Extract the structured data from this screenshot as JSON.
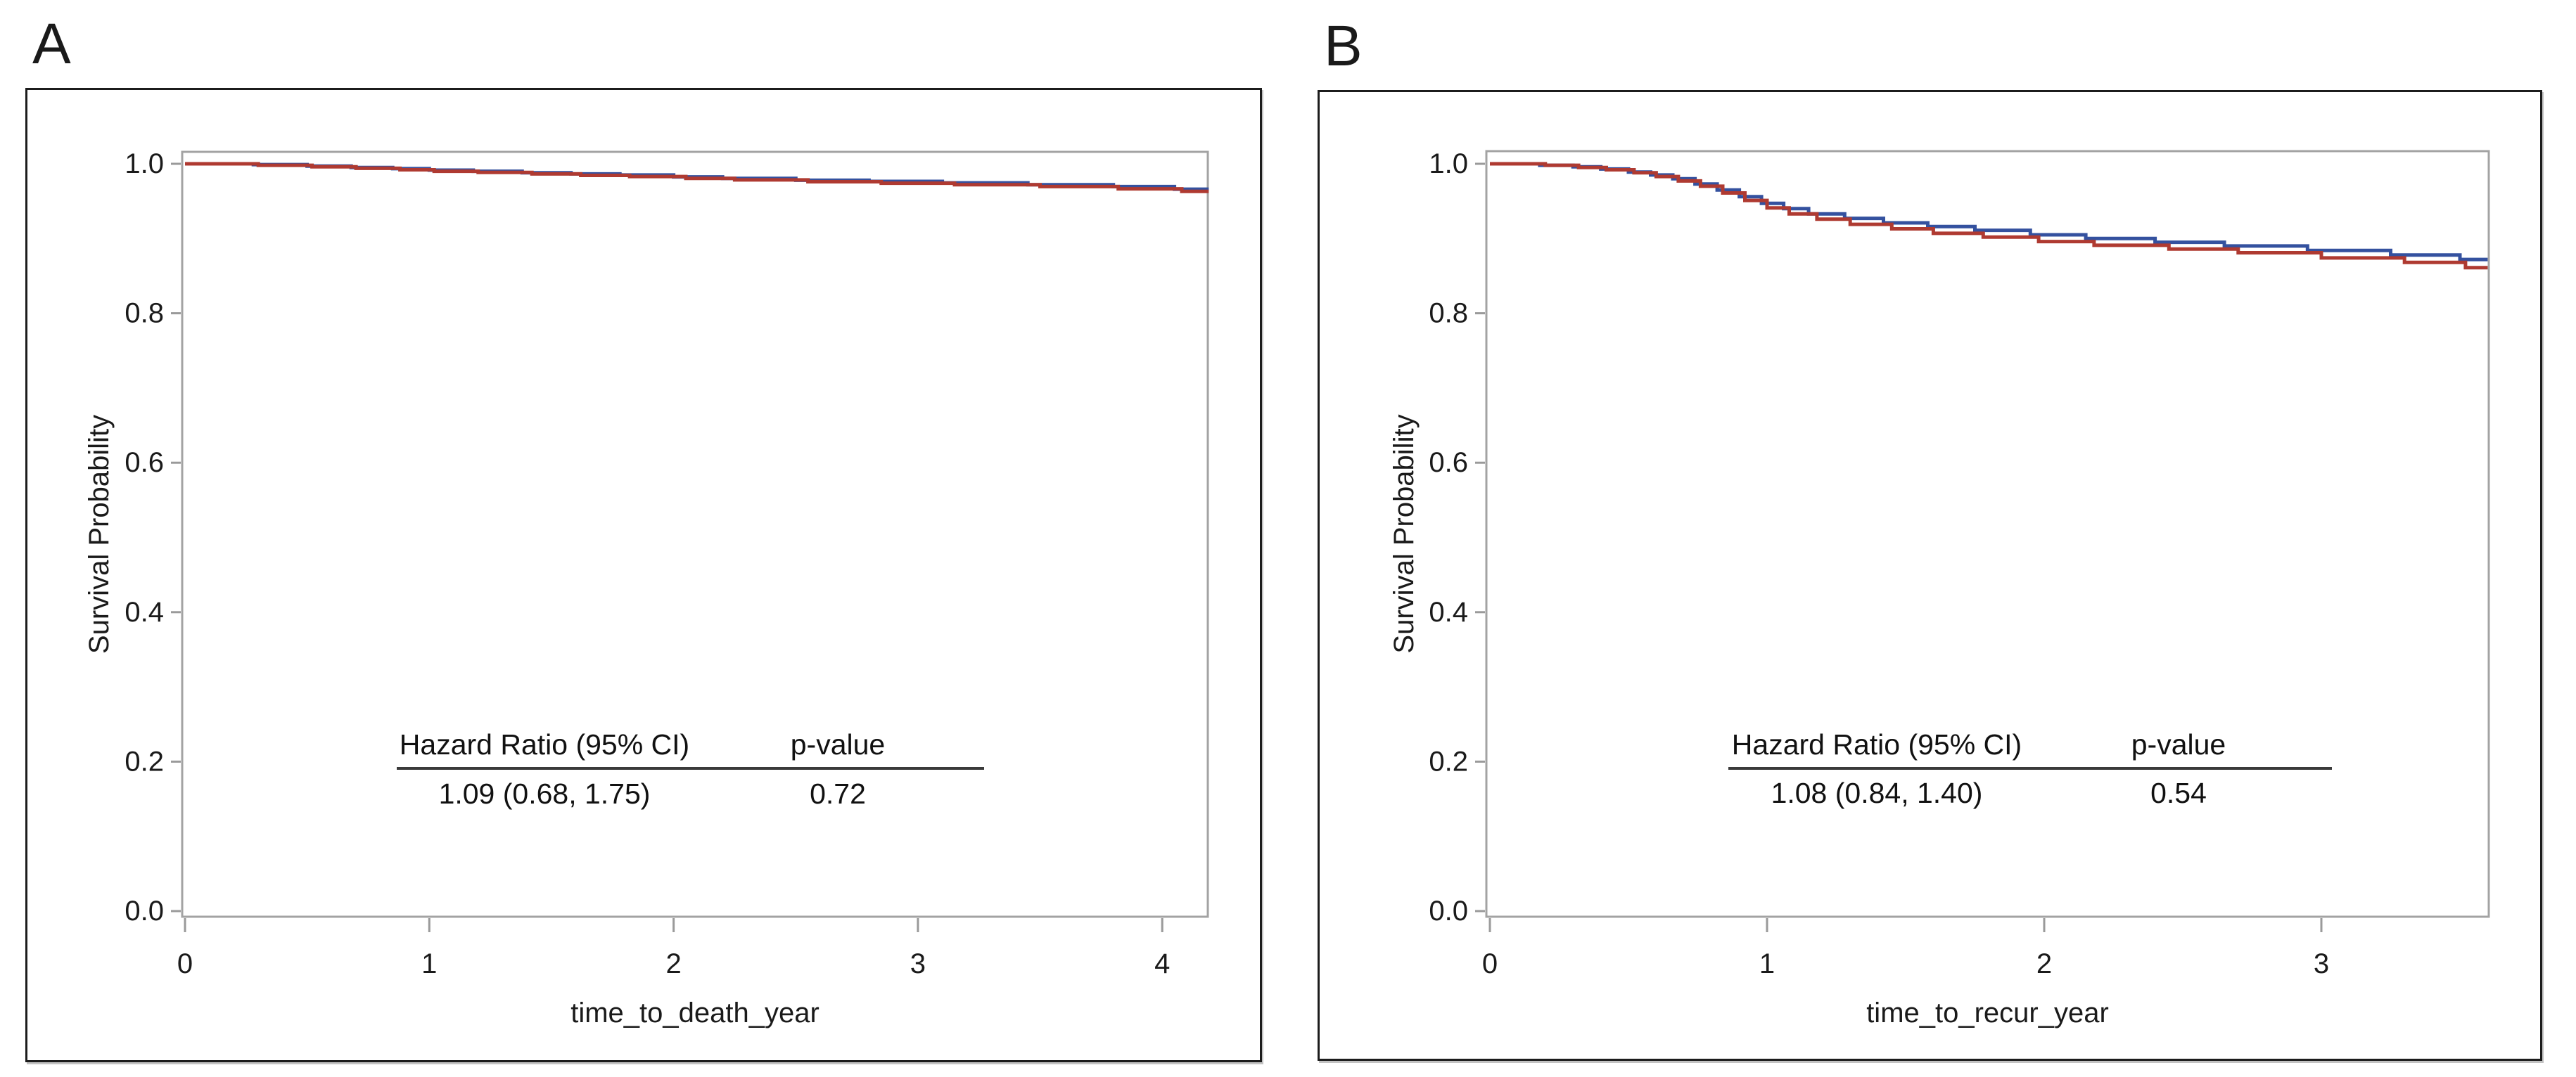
{
  "figure": {
    "panel_labels": [
      "A",
      "B"
    ],
    "background": "#ffffff"
  },
  "chart_data": [
    {
      "type": "line",
      "subtype": "kaplan-meier-step",
      "panel": "A",
      "xlabel": "time_to_death_year",
      "ylabel": "Survival Probability",
      "xlim": [
        0,
        4.19
      ],
      "ylim": [
        0.0,
        1.0
      ],
      "xticks": [
        0,
        1,
        2,
        3,
        4
      ],
      "xtick_labels": [
        "0",
        "1",
        "2",
        "3",
        "4"
      ],
      "yticks": [
        1.0,
        0.8,
        0.6,
        0.4,
        0.2,
        0.0
      ],
      "ytick_labels": [
        "1.0",
        "0.8",
        "0.6",
        "0.4",
        "0.2",
        "0.0"
      ],
      "grid": false,
      "legend": null,
      "series": [
        {
          "name": "group-blue",
          "color": "#34519f",
          "x": [
            0,
            0.28,
            0.5,
            0.68,
            0.85,
            1.0,
            1.18,
            1.38,
            1.58,
            1.78,
            2.0,
            2.2,
            2.5,
            2.8,
            3.1,
            3.45,
            3.8,
            4.05
          ],
          "y": [
            1.0,
            0.999,
            0.997,
            0.995,
            0.9935,
            0.9915,
            0.99,
            0.988,
            0.9865,
            0.985,
            0.9825,
            0.9805,
            0.978,
            0.9765,
            0.9745,
            0.972,
            0.9695,
            0.966
          ]
        },
        {
          "name": "group-red",
          "color": "#af3a31",
          "x": [
            0,
            0.3,
            0.52,
            0.7,
            0.88,
            1.02,
            1.2,
            1.42,
            1.62,
            1.82,
            2.05,
            2.25,
            2.55,
            2.85,
            3.15,
            3.5,
            3.82,
            4.08
          ],
          "y": [
            1.0,
            0.998,
            0.996,
            0.994,
            0.992,
            0.99,
            0.9885,
            0.9865,
            0.9845,
            0.983,
            0.9805,
            0.9785,
            0.976,
            0.974,
            0.972,
            0.9695,
            0.9665,
            0.963
          ]
        }
      ],
      "annotation_table": {
        "headers": [
          "Hazard Ratio (95% CI)",
          "p-value"
        ],
        "rows": [
          [
            "1.09 (0.68, 1.75)",
            "0.72"
          ]
        ]
      }
    },
    {
      "type": "line",
      "subtype": "kaplan-meier-step",
      "panel": "B",
      "xlabel": "time_to_recur_year",
      "ylabel": "Survival Probability",
      "xlim": [
        0,
        3.6
      ],
      "ylim": [
        0.0,
        1.0
      ],
      "xticks": [
        0,
        1,
        2,
        3
      ],
      "xtick_labels": [
        "0",
        "1",
        "2",
        "3"
      ],
      "yticks": [
        1.0,
        0.8,
        0.6,
        0.4,
        0.2,
        0.0
      ],
      "ytick_labels": [
        "1.0",
        "0.8",
        "0.6",
        "0.4",
        "0.2",
        "0.0"
      ],
      "grid": false,
      "legend": null,
      "series": [
        {
          "name": "group-blue",
          "color": "#34519f",
          "x": [
            0,
            0.18,
            0.3,
            0.4,
            0.5,
            0.58,
            0.66,
            0.74,
            0.82,
            0.9,
            0.98,
            1.06,
            1.15,
            1.28,
            1.42,
            1.58,
            1.75,
            1.95,
            2.15,
            2.4,
            2.65,
            2.95,
            3.25,
            3.5
          ],
          "y": [
            1.0,
            0.998,
            0.996,
            0.993,
            0.989,
            0.985,
            0.98,
            0.973,
            0.965,
            0.956,
            0.947,
            0.94,
            0.933,
            0.927,
            0.921,
            0.916,
            0.911,
            0.905,
            0.9,
            0.895,
            0.89,
            0.884,
            0.878,
            0.872
          ]
        },
        {
          "name": "group-red",
          "color": "#af3a31",
          "x": [
            0,
            0.2,
            0.32,
            0.42,
            0.52,
            0.6,
            0.68,
            0.76,
            0.84,
            0.92,
            1.0,
            1.08,
            1.18,
            1.3,
            1.45,
            1.6,
            1.78,
            1.98,
            2.18,
            2.45,
            2.7,
            3.0,
            3.3,
            3.52
          ],
          "y": [
            1.0,
            0.998,
            0.995,
            0.992,
            0.988,
            0.983,
            0.977,
            0.97,
            0.961,
            0.951,
            0.941,
            0.933,
            0.926,
            0.919,
            0.913,
            0.907,
            0.902,
            0.896,
            0.891,
            0.886,
            0.881,
            0.874,
            0.868,
            0.861
          ]
        }
      ],
      "annotation_table": {
        "headers": [
          "Hazard Ratio (95% CI)",
          "p-value"
        ],
        "rows": [
          [
            "1.08 (0.84, 1.40)",
            "0.54"
          ]
        ]
      }
    }
  ]
}
